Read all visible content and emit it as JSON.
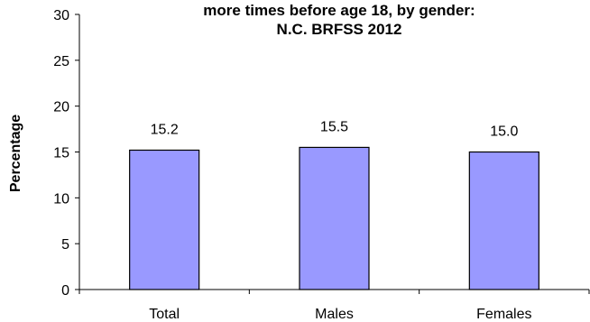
{
  "chart_data": {
    "type": "bar",
    "title_lines": [
      "more times before age 18, by gender:",
      "N.C. BRFSS 2012"
    ],
    "ylabel": "Percentage",
    "xlabel": "",
    "categories": [
      "Total",
      "Males",
      "Females"
    ],
    "values": [
      15.2,
      15.5,
      15.0
    ],
    "value_labels": [
      "15.2",
      "15.5",
      "15.0"
    ],
    "ylim": [
      0,
      30
    ],
    "yticks": [
      0,
      5,
      10,
      15,
      20,
      25,
      30
    ],
    "grid": false,
    "legend": "none",
    "colors": {
      "bar_fill": "#9999ff",
      "bar_stroke": "#000000"
    }
  }
}
